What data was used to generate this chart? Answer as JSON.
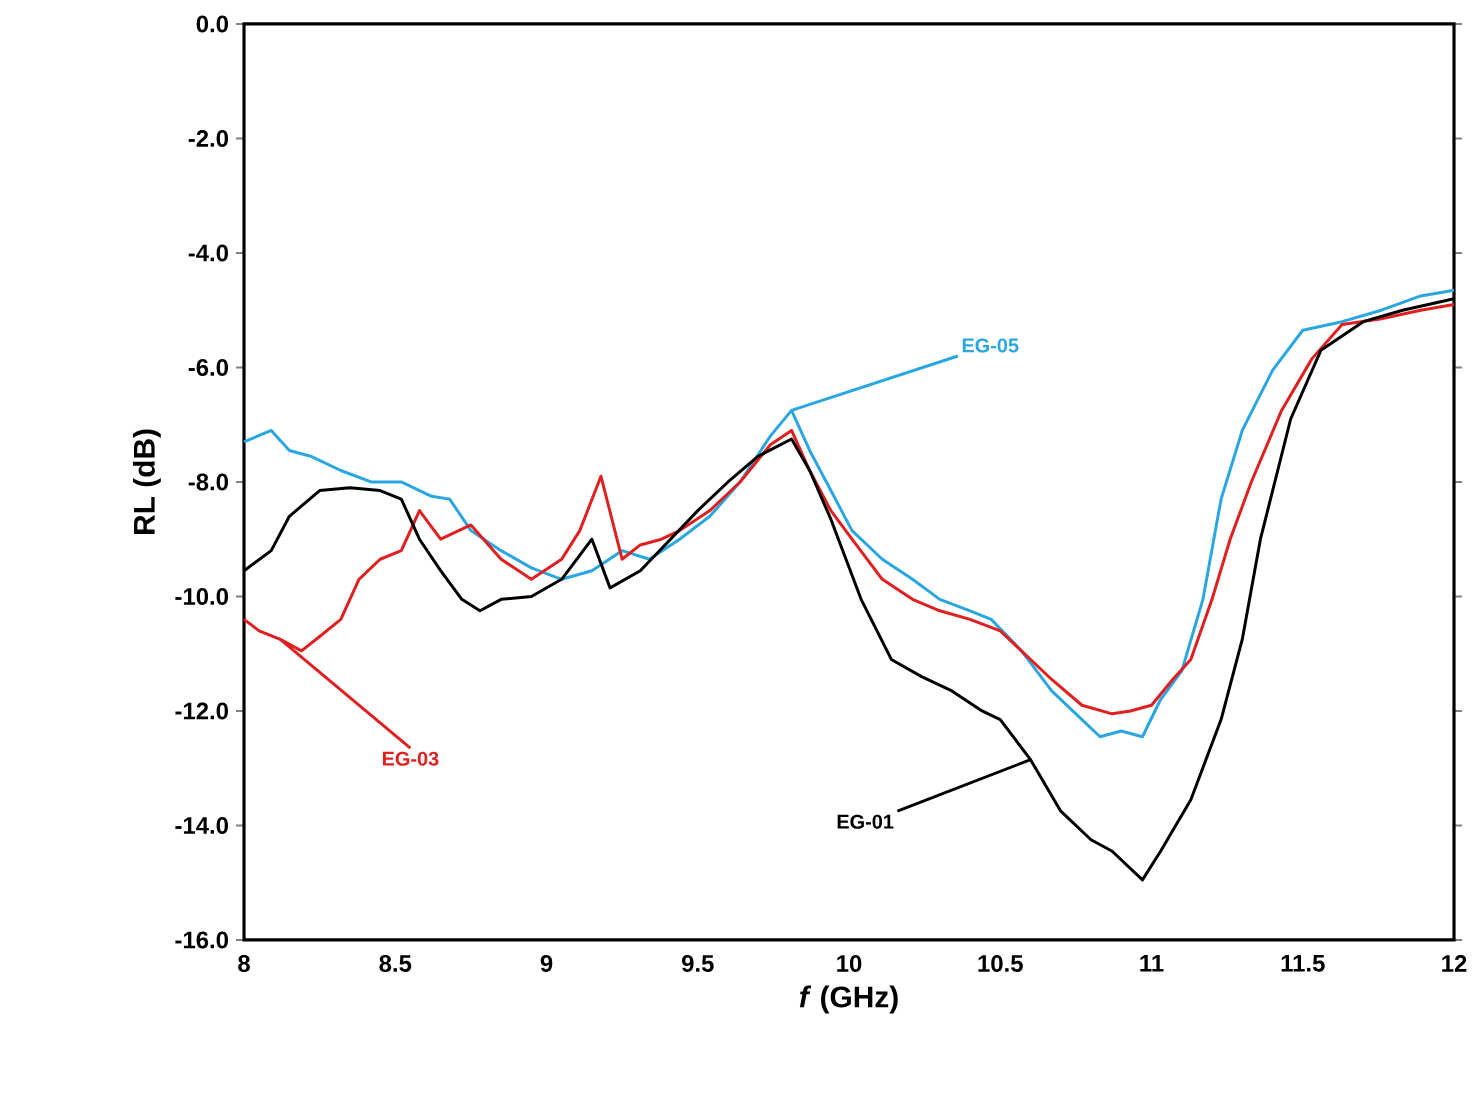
{
  "chart_data": {
    "type": "line",
    "xlabel": "*f* (GHz)",
    "ylabel": "RL (dB)",
    "xlim": [
      8,
      12
    ],
    "ylim": [
      -16,
      0
    ],
    "xticks": [
      8,
      8.5,
      9,
      9.5,
      10,
      10.5,
      11,
      11.5,
      12
    ],
    "yticks": [
      {
        "value": 0,
        "label": "0.0"
      },
      {
        "value": -2,
        "label": "-2.0"
      },
      {
        "value": -4,
        "label": "-4.0"
      },
      {
        "value": -6,
        "label": "-6.0"
      },
      {
        "value": -8,
        "label": "-8.0"
      },
      {
        "value": -10,
        "label": "-10.0"
      },
      {
        "value": -12,
        "label": "-12.0"
      },
      {
        "value": -14,
        "label": "-14.0"
      },
      {
        "value": -16,
        "label": "-16.0"
      }
    ],
    "grid": false,
    "legend": false,
    "marker": "none",
    "line_style": "solid",
    "series": [
      {
        "name": "EG-05",
        "color": "#2aa7e0",
        "x": [
          8.0,
          8.09,
          8.15,
          8.22,
          8.32,
          8.42,
          8.52,
          8.62,
          8.68,
          8.75,
          8.85,
          8.95,
          9.05,
          9.15,
          9.25,
          9.34,
          9.44,
          9.54,
          9.64,
          9.74,
          9.81,
          9.87,
          9.94,
          10.01,
          10.11,
          10.21,
          10.3,
          10.4,
          10.47,
          10.57,
          10.67,
          10.77,
          10.83,
          10.9,
          10.97,
          11.03,
          11.1,
          11.17,
          11.23,
          11.3,
          11.4,
          11.5,
          11.63,
          11.76,
          11.89,
          12.0
        ],
        "values": [
          -7.3,
          -7.1,
          -7.45,
          -7.55,
          -7.8,
          -8.0,
          -8.0,
          -8.25,
          -8.3,
          -8.85,
          -9.2,
          -9.5,
          -9.7,
          -9.55,
          -9.2,
          -9.35,
          -9.0,
          -8.6,
          -8.0,
          -7.2,
          -6.75,
          -7.45,
          -8.15,
          -8.85,
          -9.35,
          -9.7,
          -10.05,
          -10.25,
          -10.4,
          -10.95,
          -11.65,
          -12.15,
          -12.45,
          -12.35,
          -12.45,
          -11.8,
          -11.3,
          -10.05,
          -8.3,
          -7.1,
          -6.05,
          -5.35,
          -5.2,
          -5.0,
          -4.75,
          -4.65
        ]
      },
      {
        "name": "EG-03",
        "color": "#e02020",
        "x": [
          8.0,
          8.05,
          8.12,
          8.19,
          8.25,
          8.32,
          8.38,
          8.45,
          8.52,
          8.58,
          8.65,
          8.75,
          8.85,
          8.95,
          9.05,
          9.11,
          9.18,
          9.25,
          9.31,
          9.38,
          9.44,
          9.54,
          9.64,
          9.74,
          9.81,
          9.87,
          9.94,
          10.01,
          10.11,
          10.21,
          10.3,
          10.4,
          10.5,
          10.57,
          10.67,
          10.77,
          10.87,
          10.93,
          11.0,
          11.07,
          11.13,
          11.2,
          11.26,
          11.33,
          11.43,
          11.53,
          11.63,
          11.76,
          11.89,
          12.0
        ],
        "values": [
          -10.4,
          -10.6,
          -10.75,
          -10.95,
          -10.7,
          -10.4,
          -9.7,
          -9.35,
          -9.2,
          -8.5,
          -9.0,
          -8.75,
          -9.35,
          -9.7,
          -9.35,
          -8.85,
          -7.9,
          -9.35,
          -9.1,
          -9.0,
          -8.85,
          -8.5,
          -8.0,
          -7.35,
          -7.1,
          -7.8,
          -8.5,
          -9.0,
          -9.7,
          -10.05,
          -10.25,
          -10.4,
          -10.6,
          -10.95,
          -11.45,
          -11.9,
          -12.05,
          -12.0,
          -11.9,
          -11.45,
          -11.1,
          -10.05,
          -9.0,
          -8.0,
          -6.75,
          -5.85,
          -5.25,
          -5.15,
          -5.0,
          -4.9
        ]
      },
      {
        "name": "EG-01",
        "color": "#000000",
        "x": [
          8.0,
          8.09,
          8.15,
          8.25,
          8.35,
          8.45,
          8.52,
          8.58,
          8.65,
          8.72,
          8.78,
          8.85,
          8.95,
          9.05,
          9.15,
          9.21,
          9.31,
          9.41,
          9.5,
          9.6,
          9.7,
          9.81,
          9.87,
          9.94,
          10.04,
          10.14,
          10.24,
          10.34,
          10.44,
          10.5,
          10.6,
          10.7,
          10.8,
          10.87,
          10.97,
          11.03,
          11.13,
          11.23,
          11.3,
          11.36,
          11.46,
          11.56,
          11.7,
          11.83,
          12.0
        ],
        "values": [
          -9.55,
          -9.2,
          -8.6,
          -8.15,
          -8.1,
          -8.15,
          -8.3,
          -9.0,
          -9.55,
          -10.05,
          -10.25,
          -10.05,
          -10.0,
          -9.7,
          -9.0,
          -9.85,
          -9.55,
          -9.0,
          -8.5,
          -8.0,
          -7.55,
          -7.25,
          -7.8,
          -8.65,
          -10.05,
          -11.1,
          -11.4,
          -11.65,
          -12.0,
          -12.15,
          -12.85,
          -13.75,
          -14.25,
          -14.45,
          -14.95,
          -14.45,
          -13.55,
          -12.15,
          -10.75,
          -9.0,
          -6.9,
          -5.7,
          -5.2,
          -5.0,
          -4.8
        ]
      }
    ]
  }
}
